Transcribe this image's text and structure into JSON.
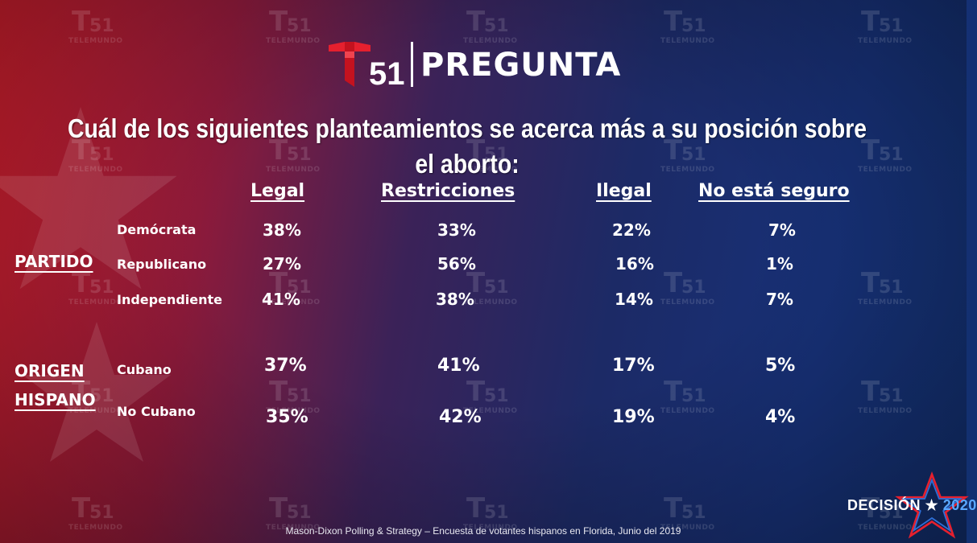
{
  "header": {
    "logo_number": "51",
    "title": "PREGUNTA"
  },
  "watermark": {
    "number": "51",
    "word": "TELEMUNDO"
  },
  "question": "Cuál de los siguientes planteamientos se acerca más a su posición sobre el aborto:",
  "chart_data": {
    "type": "table",
    "columns": [
      "Legal",
      "Restricciones",
      "Ilegal",
      "No está seguro"
    ],
    "groups": [
      {
        "label": "PARTIDO",
        "rows": [
          {
            "label": "Demócrata",
            "values": [
              "38%",
              "33%",
              "22%",
              "7%"
            ]
          },
          {
            "label": "Republicano",
            "values": [
              "27%",
              "56%",
              "16%",
              "1%"
            ]
          },
          {
            "label": "Independiente",
            "values": [
              "41%",
              "38%",
              "14%",
              "7%"
            ]
          }
        ]
      },
      {
        "label_lines": [
          "ORIGEN",
          "HISPANO"
        ],
        "rows": [
          {
            "label": "Cubano",
            "values": [
              "37%",
              "41%",
              "17%",
              "5%"
            ]
          },
          {
            "label": "No Cubano",
            "values": [
              "35%",
              "42%",
              "19%",
              "4%"
            ]
          }
        ]
      }
    ]
  },
  "footer": "Mason-Dixon  Polling & Strategy – Encuesta de votantes hispanos en Florida, Junio del 2019",
  "badge": {
    "word": "DECISIÓN",
    "star": "★",
    "year": "2020"
  },
  "colors": {
    "logo_red": "#e5202e",
    "badge_blue": "#5aa7ff"
  }
}
